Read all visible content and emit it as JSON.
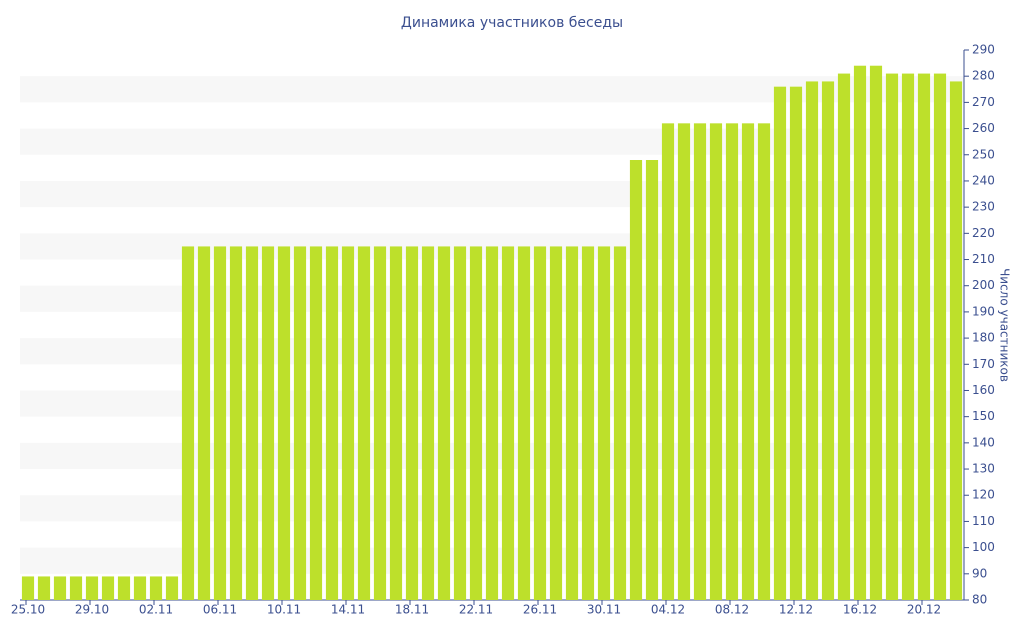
{
  "chart_data": {
    "type": "bar",
    "title": "Динамика участников беседы",
    "y_label": "Число участников",
    "categories": [
      "25.10",
      null,
      null,
      null,
      "29.10",
      null,
      null,
      null,
      "02.11",
      null,
      null,
      null,
      "06.11",
      null,
      null,
      null,
      "10.11",
      null,
      null,
      null,
      "14.11",
      null,
      null,
      null,
      "18.11",
      null,
      null,
      null,
      "22.11",
      null,
      null,
      null,
      "26.11",
      null,
      null,
      null,
      "30.11",
      null,
      null,
      null,
      "04.12",
      null,
      null,
      null,
      "08.12",
      null,
      null,
      null,
      "12.12",
      null,
      null,
      null,
      "16.12",
      null,
      null,
      null,
      "20.12",
      null,
      null
    ],
    "values": [
      89,
      89,
      89,
      89,
      89,
      89,
      89,
      89,
      89,
      89,
      215,
      215,
      215,
      215,
      215,
      215,
      215,
      215,
      215,
      215,
      215,
      215,
      215,
      215,
      215,
      215,
      215,
      215,
      215,
      215,
      215,
      215,
      215,
      215,
      215,
      215,
      215,
      215,
      248,
      248,
      262,
      262,
      262,
      262,
      262,
      262,
      262,
      276,
      276,
      278,
      278,
      281,
      284,
      284,
      281,
      281,
      281,
      281,
      278
    ],
    "color": "#bde02b",
    "ylim": [
      80,
      290
    ],
    "yticks": [
      80,
      90,
      100,
      110,
      120,
      130,
      140,
      150,
      160,
      170,
      180,
      190,
      200,
      210,
      220,
      230,
      240,
      250,
      260,
      270,
      280,
      290
    ],
    "grid": "bands",
    "y_axis_side": "right"
  }
}
